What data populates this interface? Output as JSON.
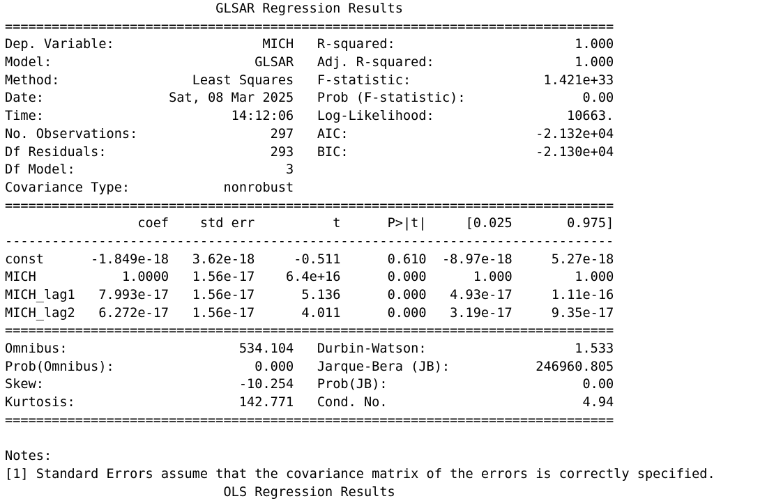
{
  "title": "GLSAR Regression Results",
  "summary": {
    "left": [
      {
        "label": "Dep. Variable:",
        "value": "MICH"
      },
      {
        "label": "Model:",
        "value": "GLSAR"
      },
      {
        "label": "Method:",
        "value": "Least Squares"
      },
      {
        "label": "Date:",
        "value": "Sat, 08 Mar 2025"
      },
      {
        "label": "Time:",
        "value": "14:12:06"
      },
      {
        "label": "No. Observations:",
        "value": "297"
      },
      {
        "label": "Df Residuals:",
        "value": "293"
      },
      {
        "label": "Df Model:",
        "value": "3"
      },
      {
        "label": "Covariance Type:",
        "value": "nonrobust"
      }
    ],
    "right": [
      {
        "label": "R-squared:",
        "value": "1.000"
      },
      {
        "label": "Adj. R-squared:",
        "value": "1.000"
      },
      {
        "label": "F-statistic:",
        "value": "1.421e+33"
      },
      {
        "label": "Prob (F-statistic):",
        "value": "0.00"
      },
      {
        "label": "Log-Likelihood:",
        "value": "10663."
      },
      {
        "label": "AIC:",
        "value": "-2.132e+04"
      },
      {
        "label": "BIC:",
        "value": "-2.130e+04"
      }
    ]
  },
  "coef_table": {
    "headers": [
      "coef",
      "std err",
      "t",
      "P>|t|",
      "[0.025",
      "0.975]"
    ],
    "rows": [
      {
        "name": "const",
        "values": [
          "-1.849e-18",
          "3.62e-18",
          "-0.511",
          "0.610",
          "-8.97e-18",
          "5.27e-18"
        ]
      },
      {
        "name": "MICH",
        "values": [
          "1.0000",
          "1.56e-17",
          "6.4e+16",
          "0.000",
          "1.000",
          "1.000"
        ]
      },
      {
        "name": "MICH_lag1",
        "values": [
          "7.993e-17",
          "1.56e-17",
          "5.136",
          "0.000",
          "4.93e-17",
          "1.11e-16"
        ]
      },
      {
        "name": "MICH_lag2",
        "values": [
          "6.272e-17",
          "1.56e-17",
          "4.011",
          "0.000",
          "3.19e-17",
          "9.35e-17"
        ]
      }
    ]
  },
  "diagnostics": {
    "left": [
      {
        "label": "Omnibus:",
        "value": "534.104"
      },
      {
        "label": "Prob(Omnibus):",
        "value": "0.000"
      },
      {
        "label": "Skew:",
        "value": "-10.254"
      },
      {
        "label": "Kurtosis:",
        "value": "142.771"
      }
    ],
    "right": [
      {
        "label": "Durbin-Watson:",
        "value": "1.533"
      },
      {
        "label": "Jarque-Bera (JB):",
        "value": "246960.805"
      },
      {
        "label": "Prob(JB):",
        "value": "0.00"
      },
      {
        "label": "Cond. No.",
        "value": "4.94"
      }
    ]
  },
  "notes": {
    "heading": "Notes:",
    "items": [
      "[1] Standard Errors assume that the covariance matrix of the errors is correctly specified."
    ]
  },
  "next_title": "OLS Regression Results"
}
